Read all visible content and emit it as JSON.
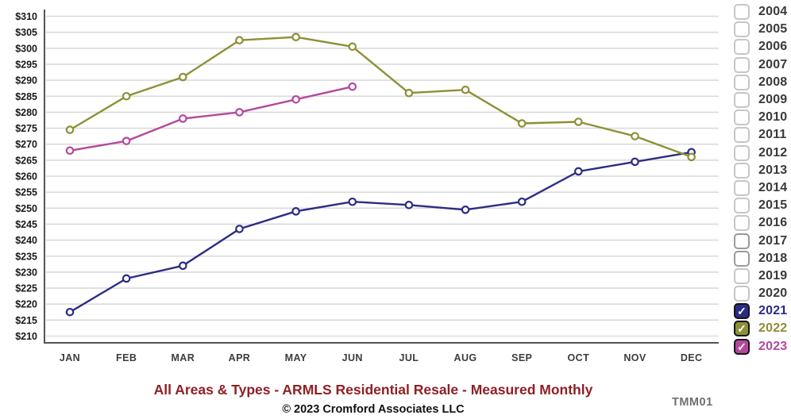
{
  "title": "All Areas & Types - ARMLS Residential Resale - Measured Monthly",
  "footer": "© 2023 Cromford Associates LLC",
  "watermark": "TMM01",
  "colors": {
    "title": "#8e2026",
    "grid": "#dadada",
    "axis": "#555555",
    "series_2021": "#2b2d84",
    "series_2022": "#8e9035",
    "series_2023": "#b3499c"
  },
  "legend": {
    "years": [
      {
        "label": "2004",
        "checked": false
      },
      {
        "label": "2005",
        "checked": false
      },
      {
        "label": "2006",
        "checked": false
      },
      {
        "label": "2007",
        "checked": false
      },
      {
        "label": "2008",
        "checked": false
      },
      {
        "label": "2009",
        "checked": false
      },
      {
        "label": "2010",
        "checked": false
      },
      {
        "label": "2011",
        "checked": false
      },
      {
        "label": "2012",
        "checked": false
      },
      {
        "label": "2013",
        "checked": false
      },
      {
        "label": "2014",
        "checked": false
      },
      {
        "label": "2015",
        "checked": false
      },
      {
        "label": "2016",
        "checked": false
      },
      {
        "label": "2017",
        "checked": false,
        "strong_border": true
      },
      {
        "label": "2018",
        "checked": false,
        "strong_border": true
      },
      {
        "label": "2019",
        "checked": false
      },
      {
        "label": "2020",
        "checked": false
      },
      {
        "label": "2021",
        "checked": true,
        "color": "#2b2d84"
      },
      {
        "label": "2022",
        "checked": true,
        "color": "#8e9035"
      },
      {
        "label": "2023",
        "checked": true,
        "color": "#b3499c"
      }
    ],
    "check_glyph": "✓"
  },
  "chart_data": {
    "type": "line",
    "title": "All Areas & Types - ARMLS Residential Resale - Measured Monthly",
    "x": [
      "JAN",
      "FEB",
      "MAR",
      "APR",
      "MAY",
      "JUN",
      "JUL",
      "AUG",
      "SEP",
      "OCT",
      "NOV",
      "DEC"
    ],
    "series": [
      {
        "name": "2021",
        "color": "#2b2d84",
        "values": [
          217.5,
          228,
          232,
          243.5,
          249,
          252,
          251,
          249.5,
          252,
          261.5,
          264.5,
          267.5
        ]
      },
      {
        "name": "2022",
        "color": "#8e9035",
        "values": [
          274.5,
          285,
          291,
          302.5,
          303.5,
          300.5,
          286,
          287,
          276.5,
          277,
          272.5,
          266
        ]
      },
      {
        "name": "2023",
        "color": "#b3499c",
        "values": [
          268,
          271,
          278,
          280,
          284,
          288,
          null,
          null,
          null,
          null,
          null,
          null
        ]
      }
    ],
    "ylim": [
      210,
      310
    ],
    "ytick_step": 5,
    "ytick_prefix": "$",
    "grid": "horizontal",
    "legend_position": "right",
    "marker": "open-circle"
  }
}
